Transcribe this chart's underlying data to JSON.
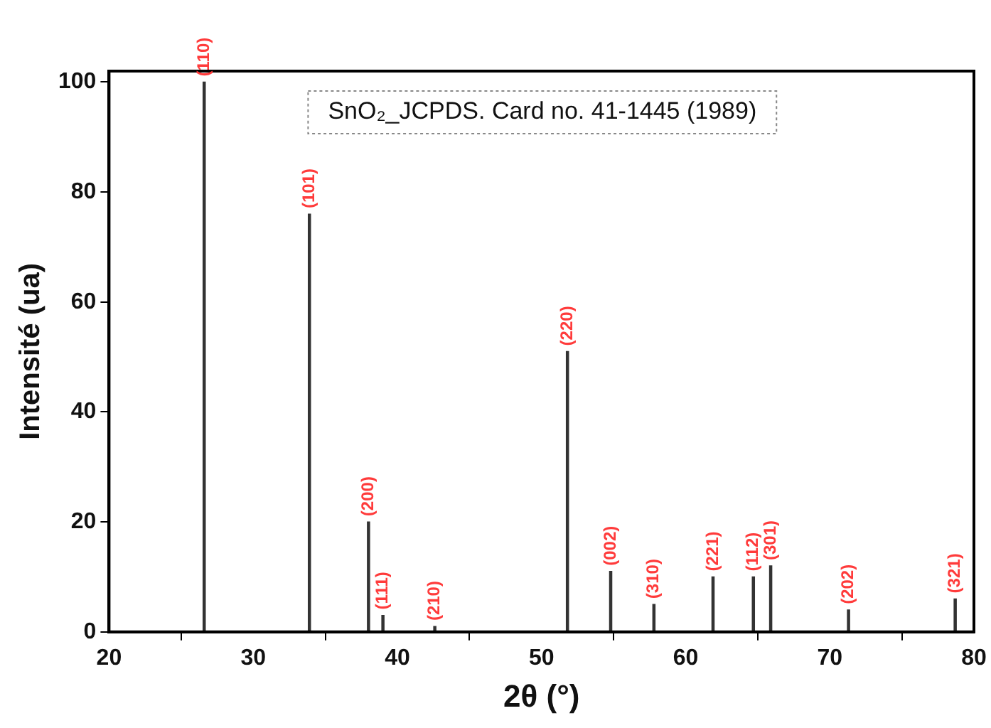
{
  "chart_data": {
    "type": "bar",
    "xlabel": "2θ (°)",
    "ylabel": "Intensité (ua)",
    "x": [
      26.6,
      33.9,
      38.0,
      39.0,
      42.6,
      51.8,
      54.8,
      57.8,
      61.9,
      64.7,
      65.9,
      71.3,
      78.7
    ],
    "values": [
      100,
      76,
      20,
      3,
      1,
      51,
      11,
      5,
      10,
      10,
      12,
      4,
      6
    ],
    "color": "#333333",
    "xlim": [
      20,
      80
    ],
    "xticks": [
      20,
      30,
      40,
      50,
      60,
      70,
      80
    ],
    "ylim": [
      0,
      102
    ],
    "yticks": [
      0,
      20,
      40,
      60,
      80,
      100
    ],
    "grid": false,
    "legend": false,
    "annotations": [
      "SnO₂_JCPDS. Card no. 41-1445 (1989)",
      {
        "text": "(110)",
        "x": 26.6,
        "y": 100
      },
      {
        "text": "(101)",
        "x": 33.9,
        "y": 76
      },
      {
        "text": "(200)",
        "x": 38.0,
        "y": 20
      },
      {
        "text": "(111)",
        "x": 39.0,
        "y": 3
      },
      {
        "text": "(210)",
        "x": 42.6,
        "y": 1
      },
      {
        "text": "(220)",
        "x": 51.8,
        "y": 51
      },
      {
        "text": "(002)",
        "x": 54.8,
        "y": 11
      },
      {
        "text": "(310)",
        "x": 57.8,
        "y": 5
      },
      {
        "text": "(221)",
        "x": 61.9,
        "y": 10
      },
      {
        "text": "(112)",
        "x": 64.7,
        "y": 10
      },
      {
        "text": "(301)",
        "x": 65.9,
        "y": 12
      },
      {
        "text": "(202)",
        "x": 71.3,
        "y": 4
      },
      {
        "text": "(321)",
        "x": 78.7,
        "y": 6
      }
    ]
  }
}
